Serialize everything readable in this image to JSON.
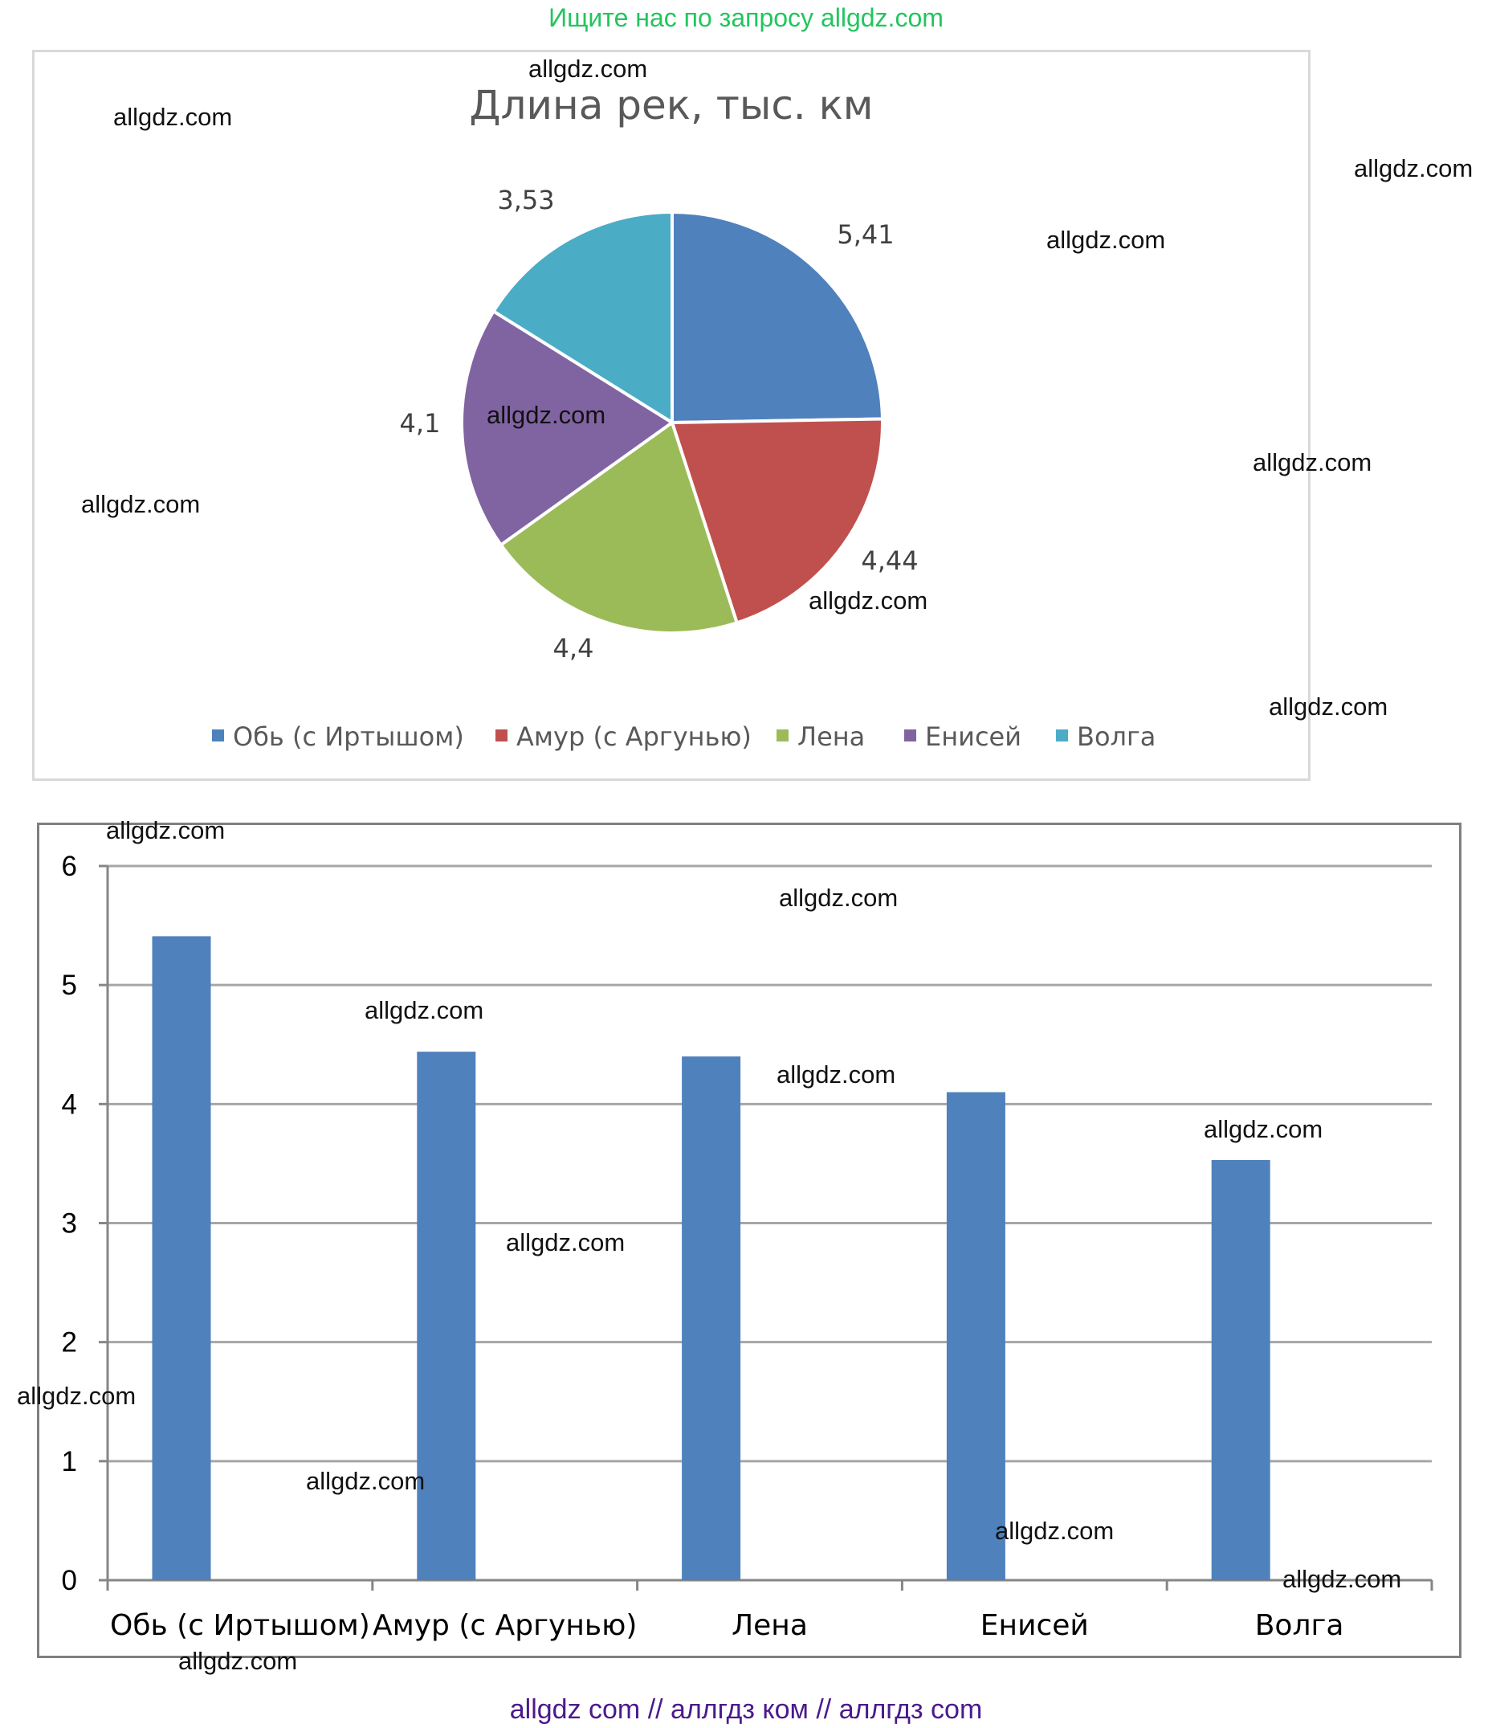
{
  "banner_top": "Ищите нас по запросу allgdz.com",
  "banner_bottom": "allgdz com  //  аллгдз ком  //  аллгдз com",
  "watermark": "allgdz.com",
  "chart_data": [
    {
      "type": "pie",
      "title": "Длина рек, тыс. км",
      "categories": [
        "Обь (с Иртышом)",
        "Амур (с Аргунью)",
        "Лена",
        "Енисей",
        "Волга"
      ],
      "values": [
        5.41,
        4.44,
        4.4,
        4.1,
        3.53
      ],
      "data_labels": [
        "5,41",
        "4,44",
        "4,4",
        "4,1",
        "3,53"
      ],
      "colors": [
        "#4f81bd",
        "#c0504d",
        "#9bbb59",
        "#8064a2",
        "#4bacc6"
      ],
      "legend_position": "bottom"
    },
    {
      "type": "bar",
      "categories": [
        "Обь (с Иртышом)",
        "Амур (с Аргунью)",
        "Лена",
        "Енисей",
        "Волга"
      ],
      "values": [
        5.41,
        4.44,
        4.4,
        4.1,
        3.53
      ],
      "ylim": [
        0,
        6
      ],
      "yticks": [
        "0",
        "1",
        "2",
        "3",
        "4",
        "5",
        "6"
      ],
      "grid": true,
      "color": "#4f81bd"
    }
  ]
}
